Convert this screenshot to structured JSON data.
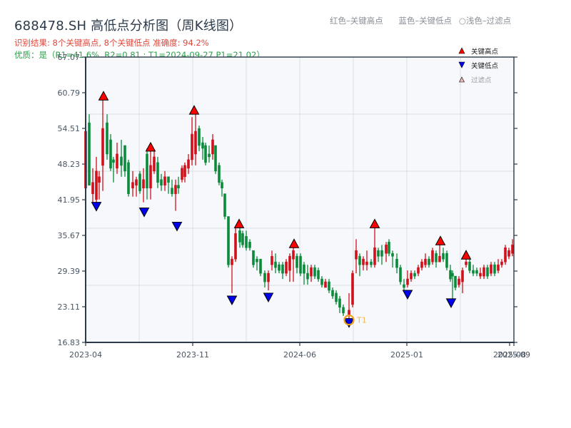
{
  "header": {
    "title": "688478.SH 高低点分析图（周K线图）",
    "result_line": "识别结果: 8个关键高点, 8个关键低点   准确度: 94.2%",
    "quality_line": "优质：是（R1=41.6%, R2=0.81 ; T1=2024-09-27 P1=21.02）"
  },
  "top_legend": {
    "red": "红色–关键高点",
    "blue": "蓝色–关键低点",
    "light": "○浅色–过滤点"
  },
  "colors": {
    "up": "#d0101a",
    "down": "#0a8a3a",
    "high_marker": "#ff0000",
    "low_marker": "#0000ee",
    "t1_ring": "#f0a020",
    "plot_bg": "#f6f8fb",
    "grid": "#dfe3e8",
    "axis": "#2b3a4a"
  },
  "chart_data": {
    "type": "candlestick",
    "title": "688478.SH 高低点分析图（周K线图）",
    "xlabel": "",
    "ylabel": "",
    "ylim": [
      16.83,
      67.07
    ],
    "y_ticks": [
      "16.83",
      "23.11",
      "29.39",
      "35.67",
      "41.95",
      "48.23",
      "54.51",
      "60.79",
      "67.07"
    ],
    "x_ticks": [
      {
        "label": "2023-04",
        "x": 120
      },
      {
        "label": "2023-11",
        "x": 270
      },
      {
        "label": "2024-06",
        "x": 420
      },
      {
        "label": "2025-01",
        "x": 570
      },
      {
        "label": "2025-08",
        "x": 714
      },
      {
        "label": "2025-09",
        "x": 720
      }
    ],
    "legend": [
      {
        "symbol": "▲",
        "label": "关键高点",
        "color": "#ff0000"
      },
      {
        "symbol": "▼",
        "label": "关键低点",
        "color": "#0000ee"
      },
      {
        "symbol": "△",
        "label": "过滤点",
        "color": "#f3b8b8"
      }
    ],
    "grid": true,
    "candles": [
      {
        "x": 120,
        "o": 44.0,
        "c": 54.0,
        "h": 55.5,
        "l": 40.0
      },
      {
        "x": 125,
        "o": 55.5,
        "c": 44.5,
        "h": 57.0,
        "l": 44.5
      },
      {
        "x": 130,
        "o": 43.0,
        "c": 45.0,
        "h": 47.5,
        "l": 41.5
      },
      {
        "x": 135,
        "o": 42.0,
        "c": 47.0,
        "h": 49.5,
        "l": 41.5
      },
      {
        "x": 139,
        "o": 45.0,
        "c": 46.0,
        "h": 47.0,
        "l": 42.0
      },
      {
        "x": 144,
        "o": 48.0,
        "c": 54.5,
        "h": 59.5,
        "l": 43.5
      },
      {
        "x": 150,
        "o": 55.5,
        "c": 50.0,
        "h": 57.0,
        "l": 49.0
      },
      {
        "x": 155,
        "o": 52.5,
        "c": 47.5,
        "h": 53.5,
        "l": 47.0
      },
      {
        "x": 159,
        "o": 49.0,
        "c": 48.5,
        "h": 49.5,
        "l": 45.0
      },
      {
        "x": 164,
        "o": 47.5,
        "c": 50.0,
        "h": 52.0,
        "l": 46.5
      },
      {
        "x": 170,
        "o": 49.5,
        "c": 48.0,
        "h": 52.5,
        "l": 46.0
      },
      {
        "x": 175,
        "o": 51.5,
        "c": 47.0,
        "h": 51.5,
        "l": 46.0
      },
      {
        "x": 180,
        "o": 48.5,
        "c": 43.0,
        "h": 49.0,
        "l": 42.5
      },
      {
        "x": 186,
        "o": 44.0,
        "c": 45.0,
        "h": 47.0,
        "l": 42.5
      },
      {
        "x": 191,
        "o": 44.5,
        "c": 45.5,
        "h": 46.0,
        "l": 42.5
      },
      {
        "x": 196,
        "o": 46.5,
        "c": 43.5,
        "h": 47.0,
        "l": 43.0
      },
      {
        "x": 201,
        "o": 44.0,
        "c": 45.5,
        "h": 47.5,
        "l": 41.5
      },
      {
        "x": 206,
        "o": 50.0,
        "c": 44.0,
        "h": 51.0,
        "l": 42.0
      },
      {
        "x": 211,
        "o": 44.0,
        "c": 48.0,
        "h": 50.5,
        "l": 42.0
      },
      {
        "x": 216,
        "o": 47.0,
        "c": 49.5,
        "h": 50.5,
        "l": 46.5
      },
      {
        "x": 221,
        "o": 48.5,
        "c": 45.0,
        "h": 49.5,
        "l": 44.0
      },
      {
        "x": 226,
        "o": 45.5,
        "c": 44.5,
        "h": 46.5,
        "l": 43.5
      },
      {
        "x": 231,
        "o": 44.5,
        "c": 46.0,
        "h": 47.0,
        "l": 43.5
      },
      {
        "x": 236,
        "o": 46.0,
        "c": 45.0,
        "h": 46.0,
        "l": 43.0
      },
      {
        "x": 241,
        "o": 44.0,
        "c": 43.0,
        "h": 45.5,
        "l": 42.5
      },
      {
        "x": 246,
        "o": 43.0,
        "c": 44.5,
        "h": 45.5,
        "l": 40.0
      },
      {
        "x": 250,
        "o": 44.5,
        "c": 44.0,
        "h": 46.0,
        "l": 43.0
      },
      {
        "x": 255,
        "o": 45.5,
        "c": 47.5,
        "h": 48.0,
        "l": 45.0
      },
      {
        "x": 259,
        "o": 46.0,
        "c": 48.0,
        "h": 48.5,
        "l": 45.0
      },
      {
        "x": 264,
        "o": 47.5,
        "c": 49.0,
        "h": 50.0,
        "l": 46.5
      },
      {
        "x": 269,
        "o": 49.0,
        "c": 53.5,
        "h": 56.5,
        "l": 48.0
      },
      {
        "x": 274,
        "o": 50.0,
        "c": 54.0,
        "h": 57.5,
        "l": 48.0
      },
      {
        "x": 279,
        "o": 54.5,
        "c": 51.5,
        "h": 55.0,
        "l": 50.5
      },
      {
        "x": 284,
        "o": 52.0,
        "c": 51.0,
        "h": 53.0,
        "l": 49.0
      },
      {
        "x": 288,
        "o": 51.5,
        "c": 48.5,
        "h": 52.0,
        "l": 48.0
      },
      {
        "x": 293,
        "o": 50.0,
        "c": 49.5,
        "h": 51.5,
        "l": 48.5
      },
      {
        "x": 298,
        "o": 50.0,
        "c": 52.5,
        "h": 53.5,
        "l": 49.0
      },
      {
        "x": 302,
        "o": 51.5,
        "c": 47.0,
        "h": 51.5,
        "l": 46.5
      },
      {
        "x": 307,
        "o": 48.0,
        "c": 45.0,
        "h": 48.5,
        "l": 44.5
      },
      {
        "x": 311,
        "o": 45.0,
        "c": 44.0,
        "h": 45.5,
        "l": 42.5
      },
      {
        "x": 315,
        "o": 43.0,
        "c": 39.0,
        "h": 43.0,
        "l": 38.5
      },
      {
        "x": 320,
        "o": 39.0,
        "c": 30.5,
        "h": 39.0,
        "l": 30.0
      },
      {
        "x": 325,
        "o": 30.5,
        "c": 31.5,
        "h": 32.0,
        "l": 25.5
      },
      {
        "x": 330,
        "o": 31.5,
        "c": 36.0,
        "h": 37.0,
        "l": 31.0
      },
      {
        "x": 336,
        "o": 36.5,
        "c": 34.5,
        "h": 37.0,
        "l": 33.5
      },
      {
        "x": 340,
        "o": 36.0,
        "c": 34.0,
        "h": 36.5,
        "l": 33.5
      },
      {
        "x": 345,
        "o": 35.5,
        "c": 33.5,
        "h": 36.5,
        "l": 33.0
      },
      {
        "x": 350,
        "o": 34.5,
        "c": 33.5,
        "h": 35.0,
        "l": 33.0
      },
      {
        "x": 355,
        "o": 33.0,
        "c": 30.5,
        "h": 33.0,
        "l": 30.0
      },
      {
        "x": 360,
        "o": 31.5,
        "c": 31.0,
        "h": 32.0,
        "l": 29.5
      },
      {
        "x": 365,
        "o": 31.5,
        "c": 29.0,
        "h": 31.5,
        "l": 28.5
      },
      {
        "x": 371,
        "o": 29.0,
        "c": 27.5,
        "h": 29.5,
        "l": 26.5
      },
      {
        "x": 376,
        "o": 27.5,
        "c": 29.0,
        "h": 29.5,
        "l": 26.0
      },
      {
        "x": 381,
        "o": 30.5,
        "c": 32.0,
        "h": 33.0,
        "l": 29.5
      },
      {
        "x": 386,
        "o": 31.0,
        "c": 30.0,
        "h": 32.5,
        "l": 29.0
      },
      {
        "x": 391,
        "o": 30.5,
        "c": 29.5,
        "h": 31.0,
        "l": 29.0
      },
      {
        "x": 396,
        "o": 30.5,
        "c": 29.0,
        "h": 31.0,
        "l": 28.0
      },
      {
        "x": 401,
        "o": 29.0,
        "c": 31.0,
        "h": 31.5,
        "l": 28.5
      },
      {
        "x": 406,
        "o": 29.5,
        "c": 32.0,
        "h": 32.5,
        "l": 27.5
      },
      {
        "x": 411,
        "o": 31.5,
        "c": 33.0,
        "h": 34.0,
        "l": 27.5
      },
      {
        "x": 416,
        "o": 32.0,
        "c": 30.0,
        "h": 32.5,
        "l": 29.0
      },
      {
        "x": 421,
        "o": 32.0,
        "c": 29.0,
        "h": 32.5,
        "l": 28.5
      },
      {
        "x": 426,
        "o": 30.5,
        "c": 29.0,
        "h": 31.0,
        "l": 27.0
      },
      {
        "x": 431,
        "o": 29.0,
        "c": 28.0,
        "h": 30.5,
        "l": 27.0
      },
      {
        "x": 436,
        "o": 28.5,
        "c": 30.0,
        "h": 30.5,
        "l": 27.5
      },
      {
        "x": 441,
        "o": 30.0,
        "c": 28.5,
        "h": 30.5,
        "l": 28.0
      },
      {
        "x": 446,
        "o": 29.5,
        "c": 28.0,
        "h": 30.0,
        "l": 27.5
      },
      {
        "x": 451,
        "o": 28.0,
        "c": 27.0,
        "h": 28.5,
        "l": 26.5
      },
      {
        "x": 456,
        "o": 26.5,
        "c": 27.5,
        "h": 28.0,
        "l": 26.5
      },
      {
        "x": 461,
        "o": 27.5,
        "c": 26.0,
        "h": 28.0,
        "l": 25.5
      },
      {
        "x": 466,
        "o": 26.0,
        "c": 25.0,
        "h": 26.5,
        "l": 24.5
      },
      {
        "x": 471,
        "o": 25.5,
        "c": 24.0,
        "h": 26.0,
        "l": 23.5
      },
      {
        "x": 476,
        "o": 24.5,
        "c": 23.0,
        "h": 25.0,
        "l": 22.0
      },
      {
        "x": 481,
        "o": 23.0,
        "c": 22.0,
        "h": 23.5,
        "l": 21.5
      },
      {
        "x": 489,
        "o": 21.5,
        "c": 22.5,
        "h": 25.5,
        "l": 21.0
      },
      {
        "x": 494,
        "o": 23.5,
        "c": 29.0,
        "h": 29.5,
        "l": 23.0
      },
      {
        "x": 499,
        "o": 31.5,
        "c": 33.0,
        "h": 35.0,
        "l": 29.0
      },
      {
        "x": 504,
        "o": 32.0,
        "c": 30.5,
        "h": 32.5,
        "l": 28.5
      },
      {
        "x": 509,
        "o": 30.5,
        "c": 31.5,
        "h": 32.0,
        "l": 29.5
      },
      {
        "x": 514,
        "o": 30.5,
        "c": 31.0,
        "h": 33.0,
        "l": 29.5
      },
      {
        "x": 520,
        "o": 31.0,
        "c": 30.5,
        "h": 31.5,
        "l": 30.0
      },
      {
        "x": 525,
        "o": 30.5,
        "c": 33.5,
        "h": 37.5,
        "l": 30.0
      },
      {
        "x": 530,
        "o": 33.0,
        "c": 32.0,
        "h": 33.5,
        "l": 31.0
      },
      {
        "x": 535,
        "o": 33.0,
        "c": 32.0,
        "h": 34.0,
        "l": 30.5
      },
      {
        "x": 541,
        "o": 32.5,
        "c": 34.0,
        "h": 34.5,
        "l": 31.0
      },
      {
        "x": 545,
        "o": 34.5,
        "c": 32.5,
        "h": 35.0,
        "l": 32.0
      },
      {
        "x": 550,
        "o": 32.5,
        "c": 32.0,
        "h": 33.0,
        "l": 30.0
      },
      {
        "x": 556,
        "o": 31.5,
        "c": 30.0,
        "h": 32.5,
        "l": 29.0
      },
      {
        "x": 561,
        "o": 30.0,
        "c": 27.5,
        "h": 30.5,
        "l": 27.0
      },
      {
        "x": 566,
        "o": 27.0,
        "c": 26.5,
        "h": 28.0,
        "l": 26.0
      },
      {
        "x": 571,
        "o": 27.0,
        "c": 28.0,
        "h": 29.5,
        "l": 26.5
      },
      {
        "x": 576,
        "o": 28.0,
        "c": 29.0,
        "h": 29.5,
        "l": 27.5
      },
      {
        "x": 581,
        "o": 29.0,
        "c": 28.5,
        "h": 29.5,
        "l": 28.0
      },
      {
        "x": 586,
        "o": 29.0,
        "c": 30.0,
        "h": 30.5,
        "l": 28.5
      },
      {
        "x": 591,
        "o": 30.0,
        "c": 31.0,
        "h": 31.5,
        "l": 29.5
      },
      {
        "x": 596,
        "o": 30.5,
        "c": 31.5,
        "h": 32.5,
        "l": 30.0
      },
      {
        "x": 601,
        "o": 31.5,
        "c": 30.5,
        "h": 32.0,
        "l": 30.0
      },
      {
        "x": 606,
        "o": 31.0,
        "c": 33.0,
        "h": 33.5,
        "l": 30.5
      },
      {
        "x": 611,
        "o": 32.5,
        "c": 31.0,
        "h": 33.0,
        "l": 30.0
      },
      {
        "x": 616,
        "o": 31.0,
        "c": 32.0,
        "h": 34.0,
        "l": 31.0
      },
      {
        "x": 621,
        "o": 32.5,
        "c": 31.5,
        "h": 33.5,
        "l": 31.0
      },
      {
        "x": 626,
        "o": 32.5,
        "c": 30.0,
        "h": 33.0,
        "l": 29.5
      },
      {
        "x": 631,
        "o": 29.5,
        "c": 28.0,
        "h": 30.5,
        "l": 27.5
      },
      {
        "x": 634,
        "o": 29.0,
        "c": 28.5,
        "h": 29.5,
        "l": 24.5
      },
      {
        "x": 638,
        "o": 28.5,
        "c": 26.5,
        "h": 28.5,
        "l": 26.0
      },
      {
        "x": 643,
        "o": 27.0,
        "c": 28.0,
        "h": 28.5,
        "l": 26.5
      },
      {
        "x": 648,
        "o": 27.5,
        "c": 29.5,
        "h": 30.0,
        "l": 25.5
      },
      {
        "x": 653,
        "o": 30.5,
        "c": 31.0,
        "h": 32.5,
        "l": 30.0
      },
      {
        "x": 658,
        "o": 31.0,
        "c": 29.5,
        "h": 31.5,
        "l": 29.0
      },
      {
        "x": 663,
        "o": 29.5,
        "c": 29.0,
        "h": 30.5,
        "l": 28.5
      },
      {
        "x": 668,
        "o": 29.5,
        "c": 29.0,
        "h": 30.0,
        "l": 28.5
      },
      {
        "x": 673,
        "o": 28.5,
        "c": 29.0,
        "h": 30.0,
        "l": 28.0
      },
      {
        "x": 678,
        "o": 28.5,
        "c": 30.0,
        "h": 30.5,
        "l": 28.0
      },
      {
        "x": 683,
        "o": 30.0,
        "c": 28.5,
        "h": 30.5,
        "l": 28.0
      },
      {
        "x": 688,
        "o": 29.0,
        "c": 30.5,
        "h": 31.0,
        "l": 28.5
      },
      {
        "x": 693,
        "o": 30.5,
        "c": 29.0,
        "h": 31.0,
        "l": 28.5
      },
      {
        "x": 698,
        "o": 29.5,
        "c": 30.5,
        "h": 31.5,
        "l": 29.0
      },
      {
        "x": 703,
        "o": 30.5,
        "c": 31.0,
        "h": 31.5,
        "l": 30.0
      },
      {
        "x": 708,
        "o": 31.0,
        "c": 33.5,
        "h": 34.0,
        "l": 30.5
      },
      {
        "x": 713,
        "o": 32.0,
        "c": 33.0,
        "h": 33.5,
        "l": 31.5
      },
      {
        "x": 718,
        "o": 32.5,
        "c": 34.0,
        "h": 35.0,
        "l": 32.0
      }
    ],
    "key_highs": [
      {
        "x": 145,
        "price": 59.5
      },
      {
        "x": 211,
        "price": 50.5
      },
      {
        "x": 272,
        "price": 57.0
      },
      {
        "x": 335,
        "price": 37.0
      },
      {
        "x": 412,
        "price": 33.5
      },
      {
        "x": 525,
        "price": 37.0
      },
      {
        "x": 617,
        "price": 34.0
      },
      {
        "x": 653,
        "price": 31.5
      }
    ],
    "key_lows": [
      {
        "x": 135,
        "price": 41.5
      },
      {
        "x": 202,
        "price": 40.5
      },
      {
        "x": 248,
        "price": 38.0
      },
      {
        "x": 325,
        "price": 25.0
      },
      {
        "x": 376,
        "price": 25.5
      },
      {
        "x": 489,
        "price": 21.02
      },
      {
        "x": 571,
        "price": 26.0
      },
      {
        "x": 632,
        "price": 24.5
      }
    ],
    "annotation": {
      "label": "T1",
      "date": "2024-09-27",
      "price": 21.02,
      "x": 489
    }
  }
}
